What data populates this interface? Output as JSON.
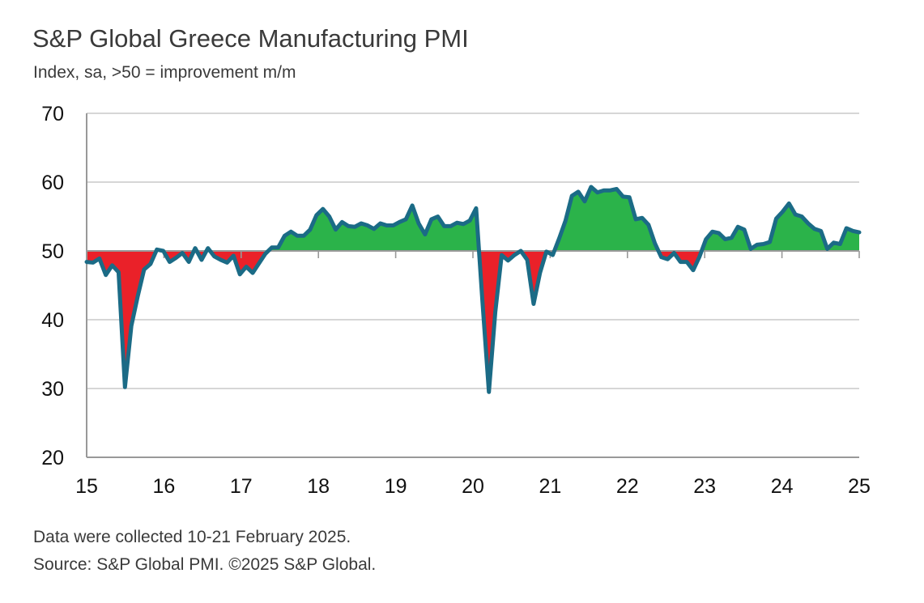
{
  "chart_data": {
    "type": "area",
    "title": "S&P Global Greece Manufacturing PMI",
    "subtitle": "Index, sa, >50 = improvement m/m",
    "xlabel": "",
    "ylabel": "",
    "ylim": [
      20,
      70
    ],
    "yticks": [
      "20",
      "30",
      "40",
      "50",
      "60",
      "70"
    ],
    "xlim": [
      2015.0,
      2025.0
    ],
    "xticks": [
      "15",
      "16",
      "17",
      "18",
      "19",
      "20",
      "21",
      "22",
      "23",
      "24",
      "25"
    ],
    "baseline": 50,
    "grid": true,
    "series": [
      {
        "name": "Greece Manufacturing PMI",
        "values": [
          48.4,
          48.3,
          48.9,
          46.5,
          47.9,
          46.9,
          30.2,
          39.1,
          43.4,
          47.3,
          48.1,
          50.2,
          50.0,
          48.4,
          49.0,
          49.7,
          48.4,
          50.4,
          48.7,
          50.4,
          49.2,
          48.7,
          48.3,
          49.3,
          46.6,
          47.7,
          46.8,
          48.2,
          49.6,
          50.5,
          50.5,
          52.2,
          52.8,
          52.2,
          52.2,
          53.1,
          55.2,
          56.1,
          55.0,
          53.1,
          54.2,
          53.6,
          53.5,
          54.0,
          53.7,
          53.2,
          54.0,
          53.7,
          53.7,
          54.2,
          54.6,
          56.6,
          54.0,
          52.4,
          54.6,
          55.0,
          53.6,
          53.6,
          54.1,
          53.9,
          54.4,
          56.2,
          42.5,
          29.5,
          41.1,
          49.4,
          48.6,
          49.4,
          50.0,
          48.7,
          42.3,
          46.8,
          49.9,
          49.4,
          51.8,
          54.4,
          58.0,
          58.6,
          57.2,
          59.3,
          58.5,
          58.8,
          58.8,
          59.0,
          57.9,
          57.8,
          54.6,
          54.8,
          53.8,
          51.1,
          49.1,
          48.8,
          49.7,
          48.4,
          48.4,
          47.2,
          49.2,
          51.7,
          52.8,
          52.6,
          51.7,
          51.9,
          53.5,
          53.1,
          50.3,
          50.9,
          51.0,
          51.3,
          54.7,
          55.7,
          56.9,
          55.3,
          55.0,
          54.0,
          53.2,
          52.9,
          50.3,
          51.2,
          51.0,
          53.3,
          52.9,
          52.7
        ]
      }
    ],
    "colors": {
      "line": "#1b6b86",
      "above": "#2bb34a",
      "below": "#ea2129",
      "grid": "#c8c8c8",
      "axis": "#999999"
    }
  },
  "footer": {
    "note": "Data were collected 10-21 February 2025.",
    "source": "Source: S&P Global PMI. ©2025 S&P Global."
  }
}
